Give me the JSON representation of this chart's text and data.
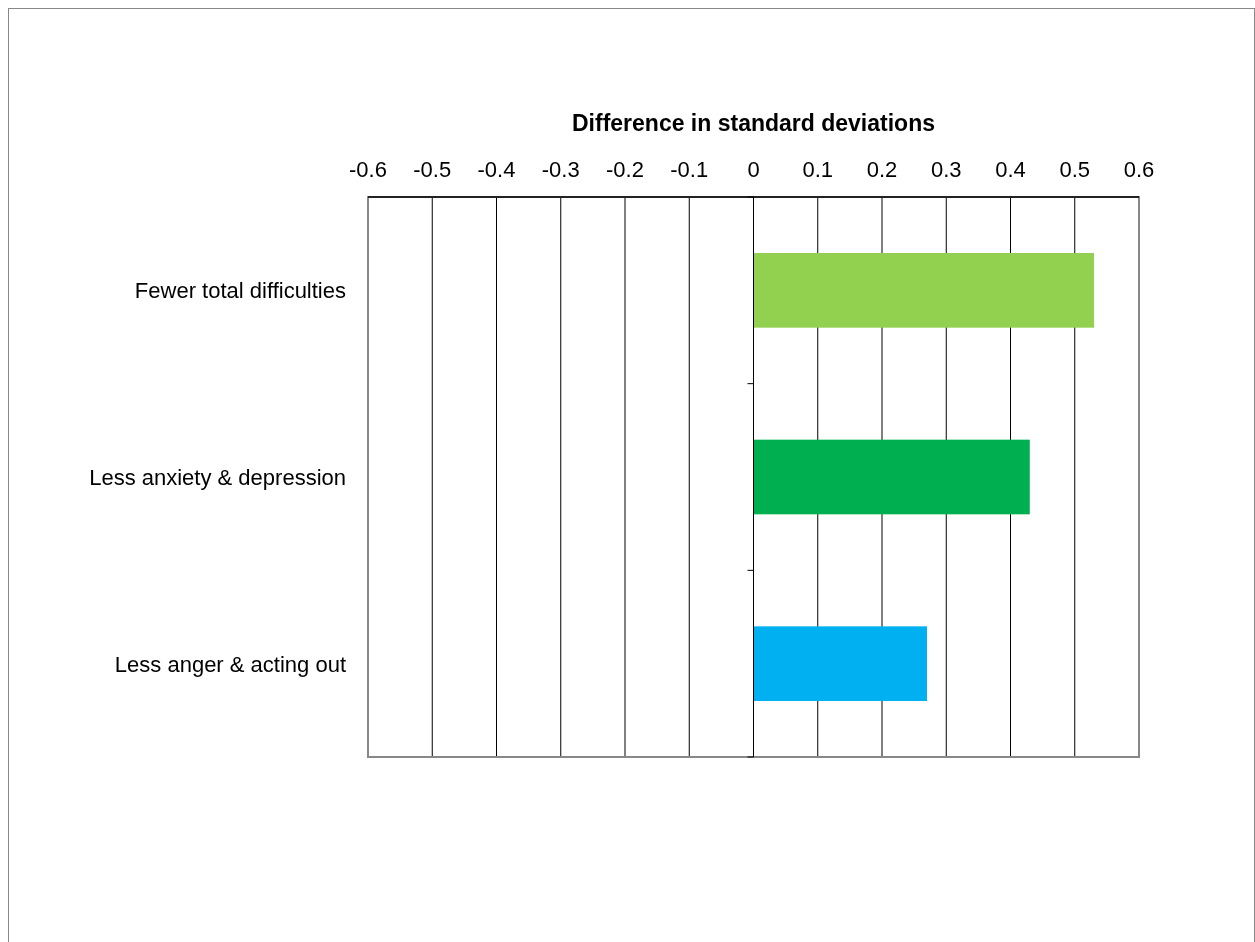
{
  "chart_data": {
    "type": "bar",
    "orientation": "horizontal",
    "xlabel": "Difference in standard deviations",
    "categories": [
      "Fewer total difficulties",
      "Less anxiety & depression",
      "Less anger & acting out"
    ],
    "values": [
      0.53,
      0.43,
      0.27
    ],
    "colors": [
      "#92d050",
      "#00b050",
      "#00b0f0"
    ],
    "xlim": [
      -0.6,
      0.6
    ],
    "xticks": [
      -0.6,
      -0.5,
      -0.4,
      -0.3,
      -0.2,
      -0.1,
      0,
      0.1,
      0.2,
      0.3,
      0.4,
      0.5,
      0.6
    ],
    "grid": "x"
  }
}
